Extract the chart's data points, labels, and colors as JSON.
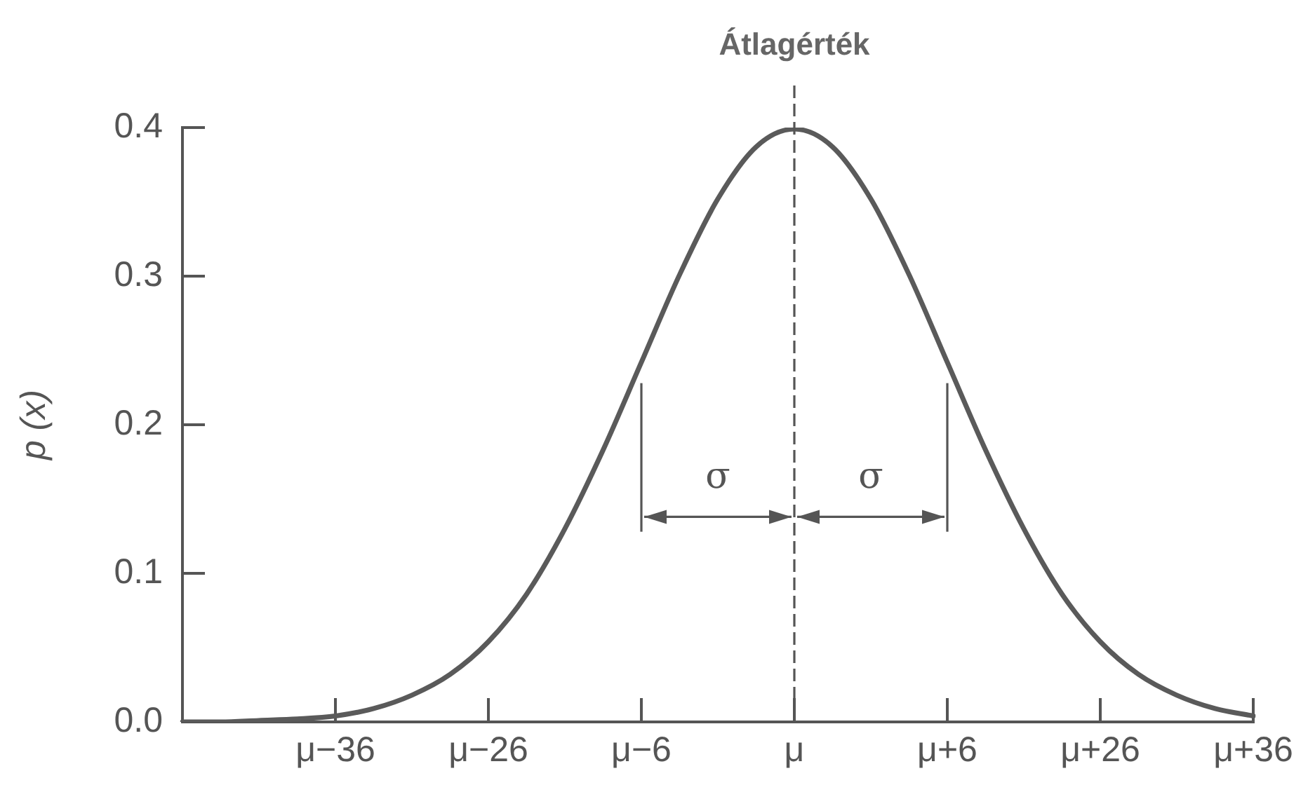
{
  "chart_data": {
    "type": "line",
    "ylabel": "p (x)",
    "categories": [
      null,
      null,
      null,
      null,
      "μ−36",
      null,
      null,
      null,
      "μ−26",
      null,
      null,
      null,
      "μ−6",
      null,
      null,
      null,
      "μ",
      null,
      null,
      null,
      "μ+6",
      null,
      null,
      null,
      "μ+26",
      null,
      null,
      null,
      "μ+36"
    ],
    "series": [
      {
        "color": "#5a5a5a",
        "values": [
          0,
          0,
          0.001,
          0.002,
          0.004,
          0.009,
          0.018,
          0.032,
          0.054,
          0.086,
          0.13,
          0.183,
          0.242,
          0.301,
          0.352,
          0.387,
          0.399,
          0.387,
          0.352,
          0.301,
          0.242,
          0.183,
          0.13,
          0.086,
          0.054,
          0.032,
          0.018,
          0.009,
          0.004
        ]
      }
    ],
    "ylim": [
      0,
      0.4
    ],
    "yticks": [
      {
        "value": 0,
        "label": "0.0"
      },
      0.1,
      0.2,
      0.3,
      0.4
    ],
    "grid": false,
    "legend": false,
    "marker": "none",
    "line_style": "solid",
    "ref_lines": [
      {
        "axis": "x",
        "value": "μ",
        "label": "Átlagérték",
        "line_style": "dashed"
      }
    ],
    "annotations": [
      "σ",
      "σ"
    ]
  }
}
